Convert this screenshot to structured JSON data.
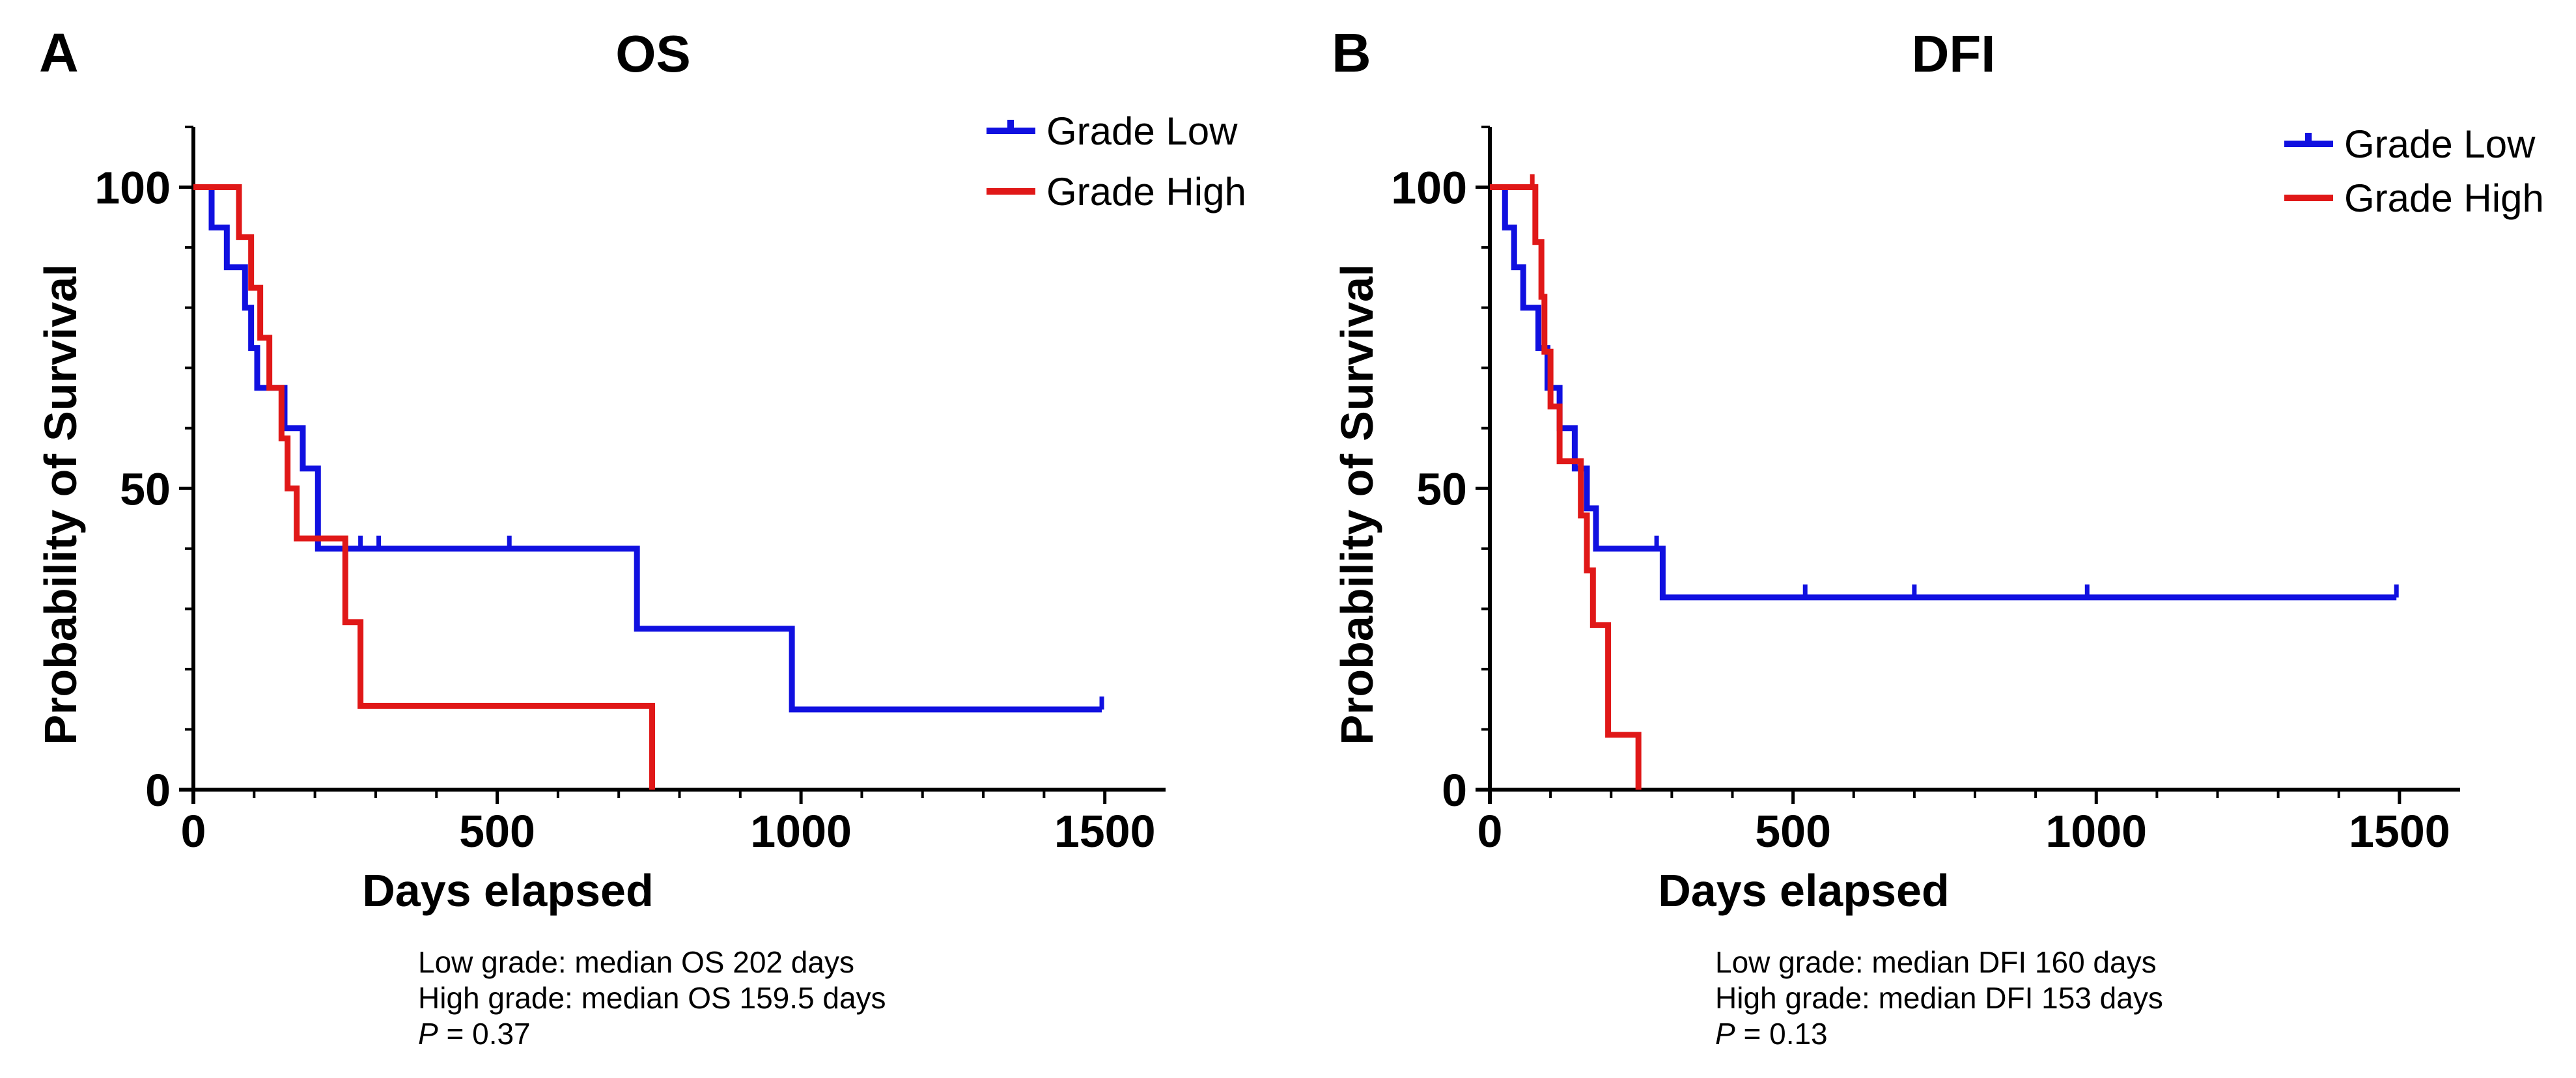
{
  "colors": {
    "low": "#1010e0",
    "high": "#e01818",
    "axis": "#000000"
  },
  "chart_data": [
    {
      "type": "line",
      "letter": "A",
      "title": "OS",
      "xlabel": "Days elapsed",
      "ylabel": "Probability of Survival",
      "xlim": [
        0,
        1600
      ],
      "ylim": [
        0,
        110
      ],
      "xticks": [
        0,
        500,
        1000,
        1500
      ],
      "xtick_labels": [
        "0",
        "500",
        "1000",
        "1500"
      ],
      "yticks": [
        0,
        50,
        100
      ],
      "ytick_labels": [
        "0",
        "50",
        "100"
      ],
      "legend_position": "top-right",
      "series": [
        {
          "name": "Grade Low",
          "color_key": "low",
          "steps": [
            [
              0,
              100
            ],
            [
              30,
              93.3
            ],
            [
              55,
              86.7
            ],
            [
              85,
              80
            ],
            [
              95,
              73.3
            ],
            [
              105,
              66.7
            ],
            [
              150,
              60
            ],
            [
              180,
              53.3
            ],
            [
              205,
              40
            ],
            [
              730,
              26.7
            ],
            [
              985,
              13.3
            ],
            [
              1495,
              13.3
            ]
          ],
          "censored": [
            [
              275,
              40
            ],
            [
              305,
              40
            ],
            [
              520,
              40
            ],
            [
              1495,
              13.3
            ]
          ]
        },
        {
          "name": "Grade High",
          "color_key": "high",
          "steps": [
            [
              0,
              100
            ],
            [
              75,
              91.7
            ],
            [
              95,
              83.3
            ],
            [
              110,
              75
            ],
            [
              125,
              66.7
            ],
            [
              145,
              58.3
            ],
            [
              155,
              50
            ],
            [
              170,
              41.7
            ],
            [
              250,
              27.8
            ],
            [
              275,
              13.9
            ],
            [
              755,
              0
            ]
          ],
          "censored": []
        }
      ],
      "notes": {
        "line1": "Low grade: median OS 202 days",
        "line2": "High grade: median OS 159.5 days",
        "p_label": "P",
        "p_value": " = 0.37"
      }
    },
    {
      "type": "line",
      "letter": "B",
      "title": "DFI",
      "xlabel": "Days elapsed",
      "ylabel": "Probability of Survival",
      "xlim": [
        0,
        1600
      ],
      "ylim": [
        0,
        110
      ],
      "xticks": [
        0,
        500,
        1000,
        1500
      ],
      "xtick_labels": [
        "0",
        "500",
        "1000",
        "1500"
      ],
      "yticks": [
        0,
        50,
        100
      ],
      "ytick_labels": [
        "0",
        "50",
        "100"
      ],
      "legend_position": "top-right",
      "series": [
        {
          "name": "Grade Low",
          "color_key": "low",
          "steps": [
            [
              0,
              100
            ],
            [
              25,
              93.3
            ],
            [
              40,
              86.7
            ],
            [
              55,
              80
            ],
            [
              80,
              73.3
            ],
            [
              95,
              66.7
            ],
            [
              115,
              60
            ],
            [
              140,
              53.3
            ],
            [
              160,
              46.7
            ],
            [
              175,
              40
            ],
            [
              285,
              31.9
            ],
            [
              1495,
              31.9
            ]
          ],
          "censored": [
            [
              275,
              40
            ],
            [
              520,
              31.9
            ],
            [
              700,
              31.9
            ],
            [
              985,
              31.9
            ],
            [
              1495,
              31.9
            ]
          ]
        },
        {
          "name": "Grade High",
          "color_key": "high",
          "steps": [
            [
              0,
              100
            ],
            [
              75,
              90.9
            ],
            [
              85,
              81.8
            ],
            [
              90,
              72.7
            ],
            [
              100,
              63.6
            ],
            [
              115,
              54.5
            ],
            [
              150,
              45.5
            ],
            [
              160,
              36.4
            ],
            [
              170,
              27.3
            ],
            [
              195,
              9.1
            ],
            [
              245,
              0
            ]
          ],
          "censored": [
            [
              70,
              100
            ]
          ]
        }
      ],
      "notes": {
        "line1": "Low grade: median DFI 160 days",
        "line2": "High grade: median DFI 153 days",
        "p_label": "P",
        "p_value": " = 0.13"
      }
    }
  ]
}
